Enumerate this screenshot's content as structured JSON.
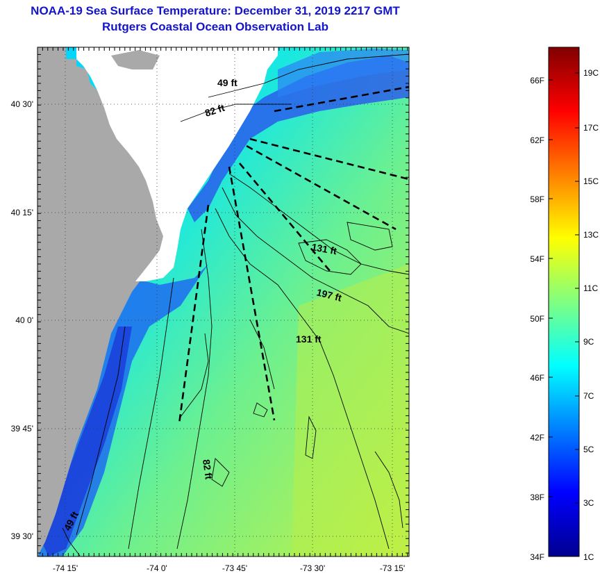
{
  "header": {
    "title": "NOAA-19 Sea Surface Temperature:  December 31, 2019 2217 GMT",
    "subtitle": "Rutgers Coastal Ocean Observation Lab"
  },
  "map": {
    "lat_labels": [
      "40 30'",
      "40 15'",
      "40 0'",
      "39 45'",
      "39 30'"
    ],
    "lon_labels": [
      "-74 15'",
      "-74 0'",
      "-73 45'",
      "-73 30'",
      "-73 15'"
    ],
    "contour_labels": [
      "49 ft",
      "82 ft",
      "131 ft",
      "197 ft",
      "131 ft",
      "82 ft",
      "49 ft"
    ],
    "colors": {
      "land": "#a9a9a9",
      "no_data": "#ffffff",
      "isobath": "#000000",
      "transect": "#000000"
    }
  },
  "colorbar": {
    "fahrenheit_labels": [
      "66F",
      "62F",
      "58F",
      "54F",
      "50F",
      "46F",
      "42F",
      "38F",
      "34F"
    ],
    "celsius_labels": [
      "19C",
      "17C",
      "15C",
      "13C",
      "11C",
      "9C",
      "7C",
      "5C",
      "3C",
      "1C"
    ],
    "gradient_colors": [
      "#00008f",
      "#0000ff",
      "#0080ff",
      "#00ffff",
      "#80ff80",
      "#ffff00",
      "#ff8000",
      "#ff0000",
      "#800000"
    ]
  }
}
